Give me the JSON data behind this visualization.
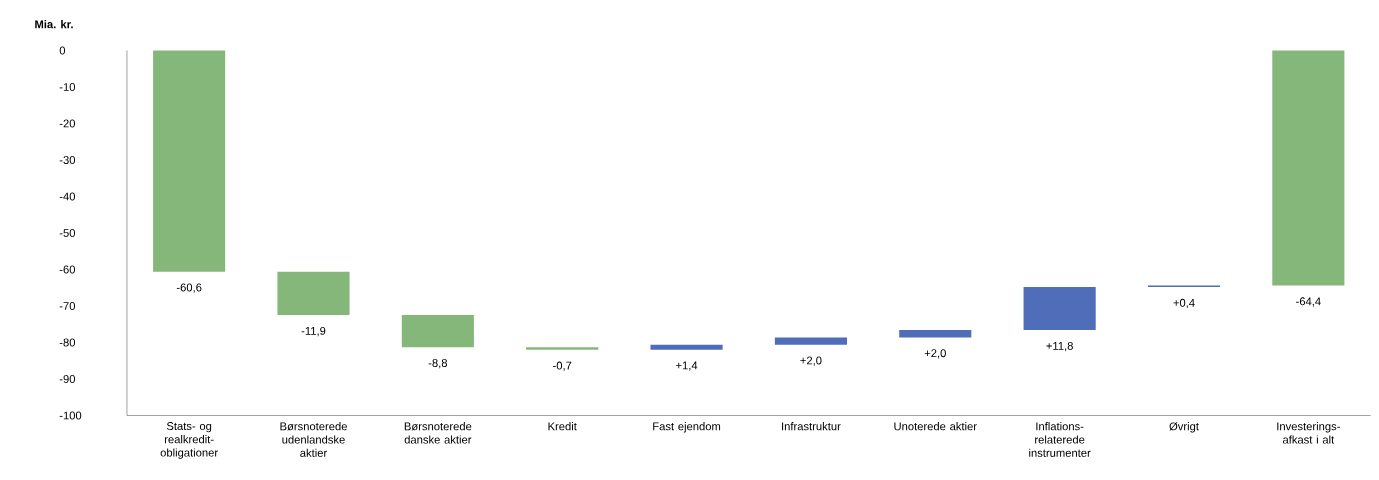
{
  "chart_data": {
    "type": "bar",
    "ylabel": "Mia. kr.",
    "categories": [
      "Stats- og realkredit-obligationer",
      "Børsnoterede udenlandske aktier",
      "Børsnoterede danske aktier",
      "Kredit",
      "Fast ejendom",
      "Infrastruktur",
      "Unoterede aktier",
      "Inflations-relaterede instrumenter",
      "Øvrigt",
      "Investerings-afkast i alt"
    ],
    "values": [
      -60.6,
      -11.9,
      -8.8,
      -0.7,
      1.4,
      2.0,
      2.0,
      11.8,
      0.4,
      -64.4
    ],
    "base": [
      0,
      -60.6,
      -72.5,
      -81.3,
      -82.0,
      -80.6,
      -78.6,
      -76.6,
      -64.8,
      0
    ],
    "colors": [
      "#86b77a",
      "#86b77a",
      "#86b77a",
      "#86b77a",
      "#4f6db8",
      "#4f6db8",
      "#4f6db8",
      "#4f6db8",
      "#4f6db8",
      "#86b77a"
    ],
    "value_labels": [
      "-60,6",
      "-11,9",
      "-8,8",
      "-0,7",
      "+1,4",
      "+2,0",
      "+2,0",
      "+11,8",
      "+0,4",
      "-64,4"
    ],
    "ylim": [
      -100,
      0
    ],
    "yticks": [
      0,
      -10,
      -20,
      -30,
      -40,
      -50,
      -60,
      -70,
      -80,
      -90,
      -100
    ],
    "grid": false
  }
}
